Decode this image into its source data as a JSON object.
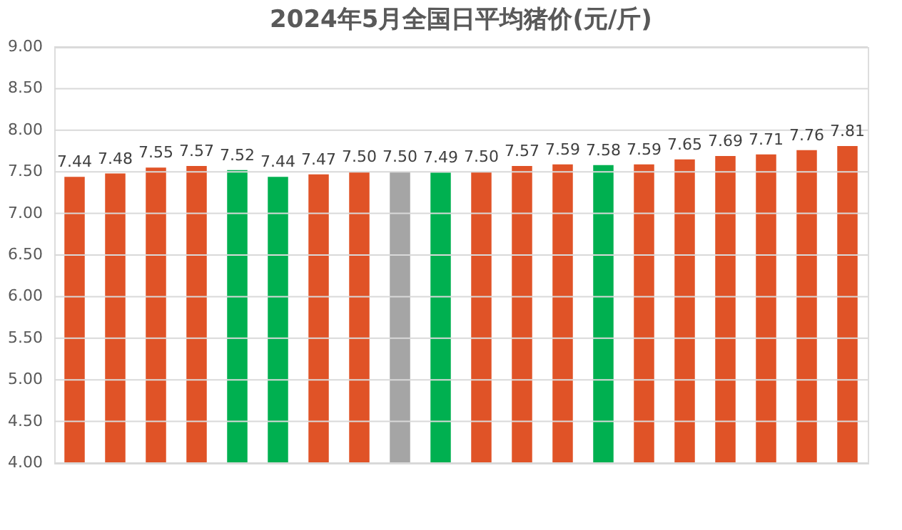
{
  "chart_data": {
    "type": "bar",
    "title": "2024年5月全国日平均猪价(元/斤)",
    "categories": [
      null,
      null,
      null,
      null,
      null,
      null,
      null,
      null,
      null,
      null,
      null,
      null,
      null,
      null,
      null,
      null,
      null,
      null,
      null,
      null
    ],
    "values": [
      7.44,
      7.48,
      7.55,
      7.57,
      7.52,
      7.44,
      7.47,
      7.5,
      7.5,
      7.49,
      7.5,
      7.57,
      7.59,
      7.58,
      7.59,
      7.65,
      7.69,
      7.71,
      7.76,
      7.81
    ],
    "colors": [
      "#e05327",
      "#e05327",
      "#e05327",
      "#e05327",
      "#00b050",
      "#00b050",
      "#e05327",
      "#e05327",
      "#a5a5a5",
      "#00b050",
      "#e05327",
      "#e05327",
      "#e05327",
      "#00b050",
      "#e05327",
      "#e05327",
      "#e05327",
      "#e05327",
      "#e05327",
      "#e05327"
    ],
    "value_labels": [
      "7.44",
      "7.48",
      "7.55",
      "7.57",
      "7.52",
      "7.44",
      "7.47",
      "7.50",
      "7.50",
      "7.49",
      "7.50",
      "7.57",
      "7.59",
      "7.58",
      "7.59",
      "7.65",
      "7.69",
      "7.71",
      "7.76",
      "7.81"
    ],
    "ylim": [
      4,
      9
    ],
    "yticks": [
      {
        "value": 4,
        "label": "4.00"
      },
      {
        "value": 4.5,
        "label": "4.50"
      },
      {
        "value": 5,
        "label": "5.00"
      },
      {
        "value": 5.5,
        "label": "5.50"
      },
      {
        "value": 6,
        "label": "6.00"
      },
      {
        "value": 6.5,
        "label": "6.50"
      },
      {
        "value": 7,
        "label": "7.00"
      },
      {
        "value": 7.5,
        "label": "7.50"
      },
      {
        "value": 8,
        "label": "8.00"
      },
      {
        "value": 8.5,
        "label": "8.50"
      },
      {
        "value": 9,
        "label": "9.00"
      }
    ],
    "grid": "y",
    "tick_labels": "y"
  }
}
